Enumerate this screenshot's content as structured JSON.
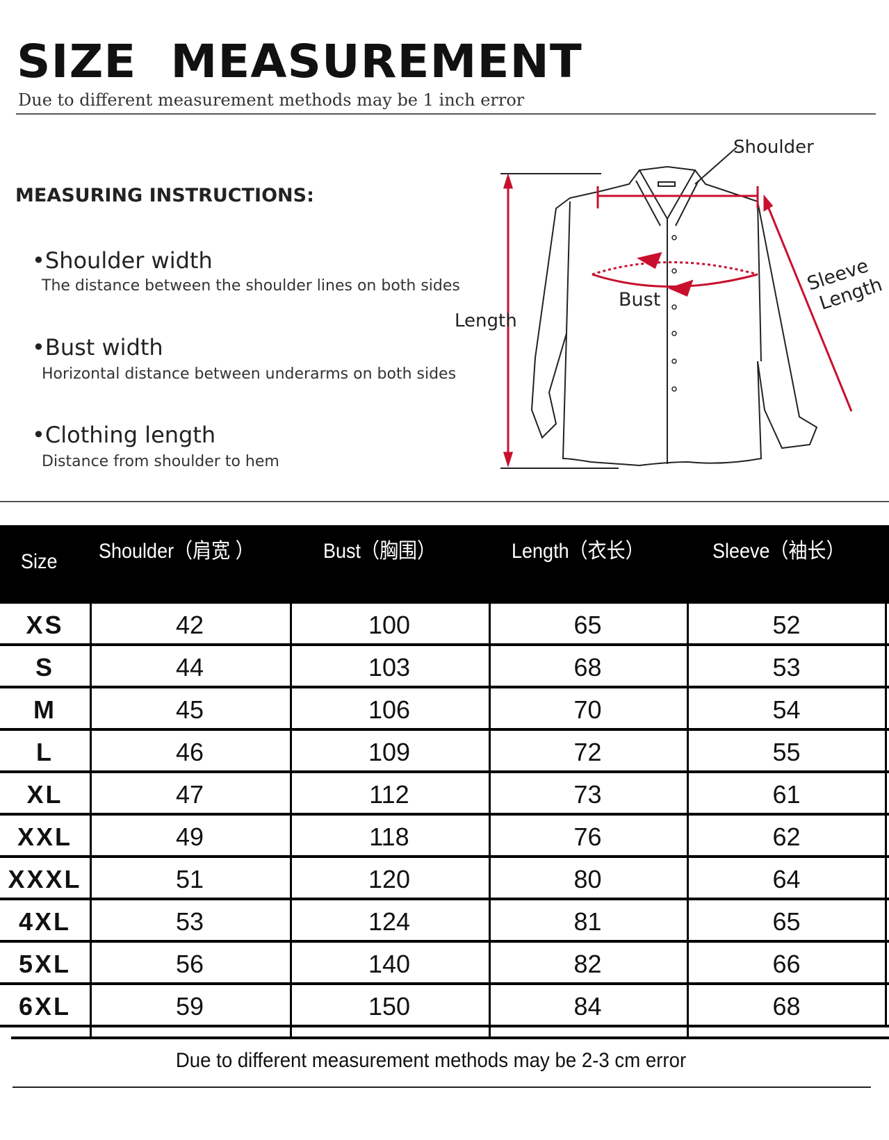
{
  "header": {
    "title": "SIZE MEASUREMENT",
    "subtitle": "Due to different measurement methods may be 1 inch error"
  },
  "instructions": {
    "heading": "MEASURING INSTRUCTIONS:",
    "items": [
      {
        "title": "•Shoulder width",
        "desc": "The distance between the shoulder lines on both sides"
      },
      {
        "title": "•Bust width",
        "desc": "Horizontal distance between underarms on both sides"
      },
      {
        "title": "•Clothing length",
        "desc": "Distance from shoulder to hem"
      }
    ]
  },
  "diagram": {
    "labels": {
      "shoulder": "Shoulder",
      "bust": "Bust",
      "length": "Length",
      "sleeve1": "Sleeve",
      "sleeve2": "Length"
    },
    "accent": "#c8102e"
  },
  "table": {
    "headers": [
      "Size",
      "Shoulder（肩宽 ）",
      "Bust（胸围）",
      "Length（衣长）",
      "Sleeve（袖长）"
    ],
    "rows": [
      [
        "XS",
        "42",
        "100",
        "65",
        "52"
      ],
      [
        "S",
        "44",
        "103",
        "68",
        "53"
      ],
      [
        "M",
        "45",
        "106",
        "70",
        "54"
      ],
      [
        "L",
        "46",
        "109",
        "72",
        "55"
      ],
      [
        "XL",
        "47",
        "112",
        "73",
        "61"
      ],
      [
        "XXL",
        "49",
        "118",
        "76",
        "62"
      ],
      [
        "XXXL",
        "51",
        "120",
        "80",
        "64"
      ],
      [
        "4XL",
        "53",
        "124",
        "81",
        "65"
      ],
      [
        "5XL",
        "56",
        "140",
        "82",
        "66"
      ],
      [
        "6XL",
        "59",
        "150",
        "84",
        "68"
      ]
    ]
  },
  "footer": "Due to different measurement methods may be 2-3 cm error"
}
